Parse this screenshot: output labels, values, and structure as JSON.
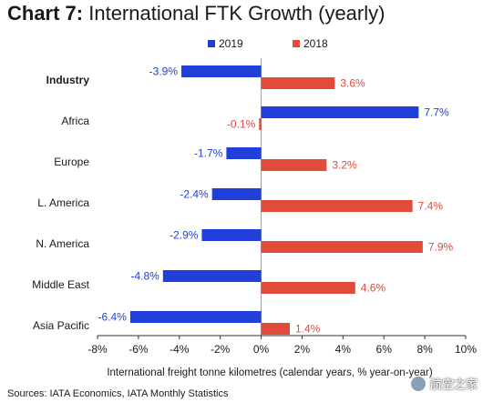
{
  "title": {
    "lead": "Chart 7:",
    "rest": " International FTK Growth (yearly)"
  },
  "source": "Sources: IATA Economics, IATA Monthly Statistics",
  "watermark": {
    "text": "航空之家",
    "icon": "chat-bubble-icon"
  },
  "chart_data": {
    "type": "bar",
    "orientation": "horizontal",
    "categories": [
      "Industry",
      "Africa",
      "Europe",
      "L. America",
      "N. America",
      "Middle East",
      "Asia Pacific"
    ],
    "bold_categories": [
      "Industry"
    ],
    "series": [
      {
        "name": "2019",
        "color": "#1f3fd8",
        "values": [
          -3.9,
          7.7,
          -1.7,
          -2.4,
          -2.9,
          -4.8,
          -6.4
        ]
      },
      {
        "name": "2018",
        "color": "#e04b3a",
        "values": [
          3.6,
          -0.1,
          3.2,
          7.4,
          7.9,
          4.6,
          1.4
        ]
      }
    ],
    "data_labels": [
      [
        "-3.9%",
        "7.7%",
        "-1.7%",
        "-2.4%",
        "-2.9%",
        "-4.8%",
        "-6.4%"
      ],
      [
        "3.6%",
        "-0.1%",
        "3.2%",
        "7.4%",
        "7.9%",
        "4.6%",
        "1.4%"
      ]
    ],
    "xlim": [
      -8,
      10
    ],
    "xticks": [
      -8,
      -6,
      -4,
      -2,
      0,
      2,
      4,
      6,
      8,
      10
    ],
    "xtick_labels": [
      "-8%",
      "-6%",
      "-4%",
      "-2%",
      "0%",
      "2%",
      "4%",
      "6%",
      "8%",
      "10%"
    ],
    "xlabel": "International freight tonne kilometres (calendar years, % year-on-year)",
    "legend_position": "top",
    "grid": false
  }
}
